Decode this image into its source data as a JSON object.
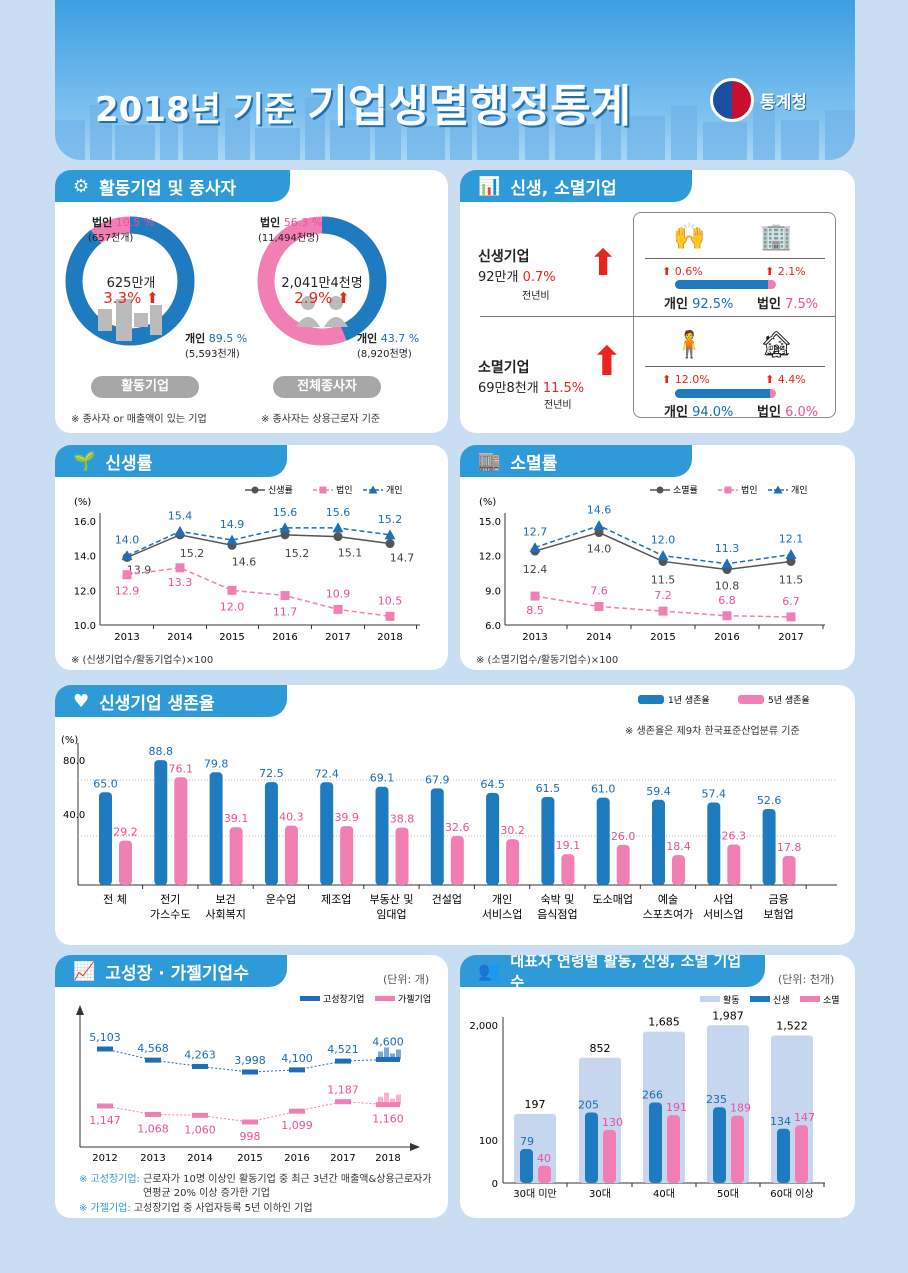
{
  "header": {
    "title_prefix": "2018년 기준",
    "title_main": "기업생멸행정통계",
    "logo_text": "통계청"
  },
  "colors": {
    "blue": "#1f7bc0",
    "pink": "#f17fb4",
    "gray": "#555555",
    "light_blue": "#c5d6ee",
    "red": "#e8261c"
  },
  "active": {
    "title": "활동기업 및 종사자",
    "firms": {
      "corp_label": "법인",
      "corp_pct": "10.5 %",
      "corp_count": "(657천개)",
      "indiv_label": "개인",
      "indiv_pct": "89.5 %",
      "indiv_count": "(5,593천개)",
      "total": "625만개",
      "change": "3.3%",
      "pill": "활동기업",
      "note": "※ 종사자 or 매출액이 있는 기업"
    },
    "workers": {
      "corp_label": "법인",
      "corp_pct": "56.3 %",
      "corp_count": "(11,494천명)",
      "indiv_label": "개인",
      "indiv_pct": "43.7 %",
      "indiv_count": "(8,920천명)",
      "total": "2,041만4천명",
      "change": "2.9%",
      "pill": "전체종사자",
      "note": "※ 종사자는 상용근로자 기준"
    }
  },
  "birthdeath": {
    "title": "신생, 소멸기업",
    "birth": {
      "label": "신생기업",
      "count": "92만개",
      "change": "0.7%",
      "yoy": "전년비",
      "indiv_change": "0.6%",
      "corp_change": "2.1%",
      "indiv_label": "개인",
      "indiv_share": "92.5%",
      "corp_label": "법인",
      "corp_share": "7.5%",
      "indiv_share_value": 92.5
    },
    "death": {
      "label": "소멸기업",
      "count": "69만8천개",
      "change": "11.5%",
      "yoy": "전년비",
      "indiv_change": "12.0%",
      "corp_change": "4.4%",
      "indiv_label": "개인",
      "indiv_share": "94.0%",
      "corp_label": "법인",
      "corp_share": "6.0%",
      "indiv_share_value": 94.0
    }
  },
  "birth_rate": {
    "title": "신생률",
    "note": "※ (신생기업수/활동기업수)×100"
  },
  "death_rate": {
    "title": "소멸률",
    "note": "※ (소멸기업수/활동기업수)×100"
  },
  "survival": {
    "title": "신생기업 생존율",
    "note": "※ 생존율은 제9차 한국표준산업분류 기준"
  },
  "high_growth": {
    "title": "고성장 · 가젤기업수",
    "unit": "(단위: 개)",
    "note1_key": "※ 고성장기업:",
    "note1": "근로자가 10명 이상인 활동기업 중 최근 3년간 매출액&상용근로자가",
    "note1b": "연평균 20% 이상 증가한 기업",
    "note2_key": "※ 가젤기업:",
    "note2": "고성장기업 중 사업자등록 5년 이하인 기업"
  },
  "age": {
    "title": "대표자 연령별 활동, 신생, 소멸 기업수",
    "unit": "(단위: 천개)"
  },
  "chart_data": [
    {
      "id": "firms",
      "type": "pie",
      "categories": [
        "개인",
        "법인"
      ],
      "values": [
        89.5,
        10.5
      ]
    },
    {
      "id": "workers",
      "type": "pie",
      "categories": [
        "개인",
        "법인"
      ],
      "values": [
        43.7,
        56.3
      ]
    },
    {
      "id": "birth_rate",
      "type": "line",
      "ylabel": "(%)",
      "x": [
        "2013",
        "2014",
        "2015",
        "2016",
        "2017",
        "2018"
      ],
      "ylim": [
        10,
        16
      ],
      "yticks": [
        "10.0",
        "12.0",
        "14.0",
        "16.0"
      ],
      "series": [
        {
          "name": "신생률",
          "values": [
            13.9,
            15.2,
            14.6,
            15.2,
            15.1,
            14.7
          ],
          "color": "#555555",
          "marker": "circle"
        },
        {
          "name": "법인",
          "values": [
            12.9,
            13.3,
            12.0,
            11.7,
            10.9,
            10.5
          ],
          "color": "#f17fb4",
          "marker": "square"
        },
        {
          "name": "개인",
          "values": [
            14.0,
            15.4,
            14.9,
            15.6,
            15.6,
            15.2
          ],
          "color": "#1f6fb8",
          "marker": "triangle"
        }
      ]
    },
    {
      "id": "death_rate",
      "type": "line",
      "ylabel": "(%)",
      "x": [
        "2013",
        "2014",
        "2015",
        "2016",
        "2017"
      ],
      "ylim": [
        6,
        15
      ],
      "yticks": [
        "6.0",
        "9.0",
        "12.0",
        "15.0"
      ],
      "series": [
        {
          "name": "소멸률",
          "values": [
            12.4,
            14.0,
            11.5,
            10.8,
            11.5
          ],
          "color": "#555555",
          "marker": "circle"
        },
        {
          "name": "법인",
          "values": [
            8.5,
            7.6,
            7.2,
            6.8,
            6.7
          ],
          "color": "#f17fb4",
          "marker": "square"
        },
        {
          "name": "개인",
          "values": [
            12.7,
            14.6,
            12.0,
            11.3,
            12.1
          ],
          "color": "#1f6fb8",
          "marker": "triangle"
        }
      ]
    },
    {
      "id": "survival",
      "type": "bar",
      "ylabel": "(%)",
      "yticks": [
        "40.0",
        "80.0"
      ],
      "categories": [
        [
          "전 체"
        ],
        [
          "전기",
          "가스수도"
        ],
        [
          "보건",
          "사회복지"
        ],
        [
          "운수업"
        ],
        [
          "제조업"
        ],
        [
          "부동산 및",
          "임대업"
        ],
        [
          "건설업"
        ],
        [
          "개인",
          "서비스업"
        ],
        [
          "숙박 및",
          "음식점업"
        ],
        [
          "도소매업"
        ],
        [
          "예술",
          "스포츠여가"
        ],
        [
          "사업",
          "서비스업"
        ],
        [
          "금융",
          "보험업"
        ]
      ],
      "series": [
        {
          "name": "1년 생존율",
          "values": [
            65.0,
            88.8,
            79.8,
            72.5,
            72.4,
            69.1,
            67.9,
            64.5,
            61.5,
            61.0,
            59.4,
            57.4,
            52.6
          ],
          "color": "#1f7bc0"
        },
        {
          "name": "5년 생존율",
          "values": [
            29.2,
            76.1,
            39.1,
            40.3,
            39.9,
            38.8,
            32.6,
            30.2,
            19.1,
            26.0,
            18.4,
            26.3,
            17.8
          ],
          "color": "#f17fb4"
        }
      ]
    },
    {
      "id": "high_growth",
      "type": "line",
      "x": [
        "2012",
        "2013",
        "2014",
        "2015",
        "2016",
        "2017",
        "2018"
      ],
      "series": [
        {
          "name": "고성장기업",
          "values": [
            5103,
            4568,
            4263,
            3998,
            4100,
            4521,
            4600
          ],
          "color": "#1f6fb8"
        },
        {
          "name": "가젤기업",
          "values": [
            1147,
            1068,
            1060,
            998,
            1099,
            1187,
            1160
          ],
          "color": "#f17fb4"
        }
      ]
    },
    {
      "id": "age",
      "type": "bar",
      "categories": [
        "30대 미만",
        "30대",
        "40대",
        "50대",
        "60대 이상"
      ],
      "yticks": [
        "0",
        "100",
        "2,000"
      ],
      "series": [
        {
          "name": "활동",
          "values": [
            197,
            852,
            1685,
            1987,
            1522
          ],
          "color": "#c5d6ee"
        },
        {
          "name": "신생",
          "values": [
            79,
            205,
            266,
            235,
            134
          ],
          "color": "#1f7bc0"
        },
        {
          "name": "소멸",
          "values": [
            40,
            130,
            191,
            189,
            147
          ],
          "color": "#f17fb4"
        }
      ]
    }
  ]
}
